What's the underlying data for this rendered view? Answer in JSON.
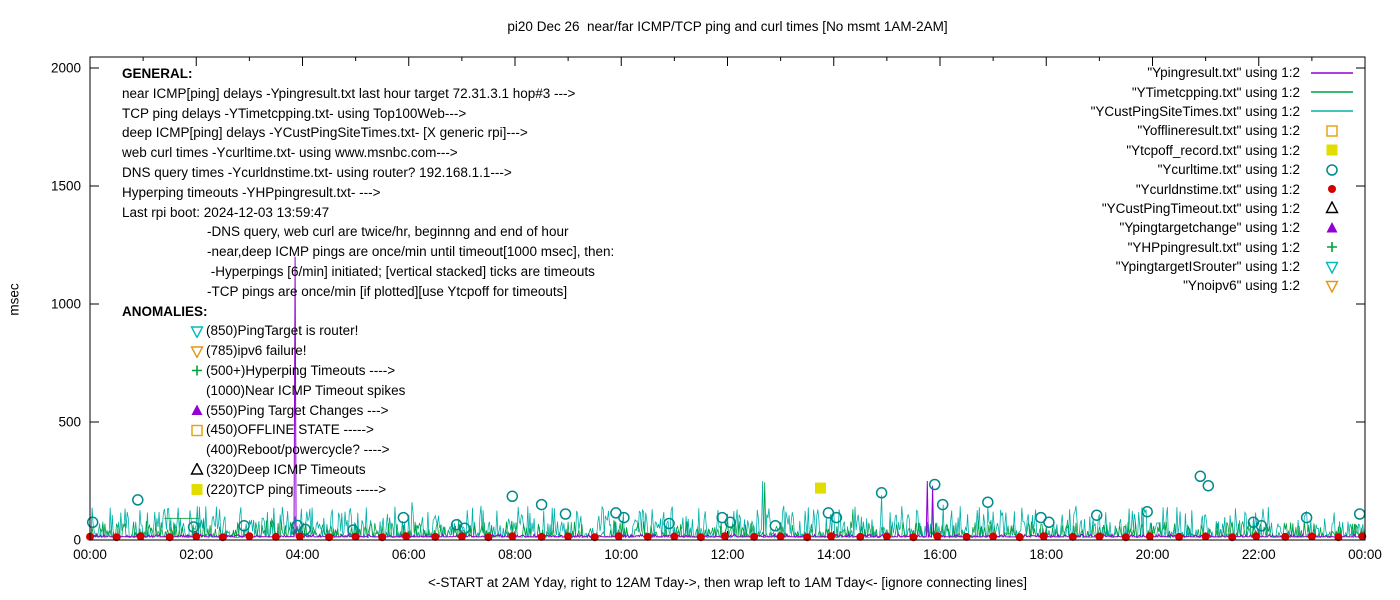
{
  "general": {
    "heading": "GENERAL:",
    "lines": [
      "near ICMP[ping] delays -Ypingresult.txt last hour target 72.31.3.1 hop#3 --->",
      "TCP ping delays -YTimetcpping.txt- using Top100Web--->",
      "deep ICMP[ping] delays -YCustPingSiteTimes.txt- [X generic rpi]--->",
      "web curl times -Ycurltime.txt- using www.msnbc.com--->",
      "DNS query times -Ycurldnstime.txt- using router? 192.168.1.1--->",
      "Hyperping timeouts -YHPpingresult.txt- --->",
      "Last rpi boot: 2024-12-03 13:59:47"
    ],
    "sub_lines": [
      "-DNS query, web curl are twice/hr, beginnng and end of hour",
      "-near,deep ICMP pings are once/min until timeout[1000 msec], then:",
      " -Hyperpings [6/min] initiated; [vertical stacked] ticks are timeouts",
      "-TCP pings are once/min [if plotted][use Ytcpoff for timeouts]"
    ]
  },
  "anomalies": {
    "heading": "ANOMALIES:",
    "items": [
      {
        "marker": "triangle-down-open",
        "color": "#00bcbc",
        "text": "(850)PingTarget is router!"
      },
      {
        "marker": "triangle-down-open",
        "color": "#e89611",
        "text": "(785)ipv6 failure!"
      },
      {
        "marker": "plus",
        "color": "#00a040",
        "text": "(500+)Hyperping Timeouts ---->"
      },
      {
        "marker": null,
        "color": "",
        "text": "(1000)Near ICMP Timeout spikes"
      },
      {
        "marker": "triangle-up-filled",
        "color": "#9400d3",
        "text": "(550)Ping Target Changes --->"
      },
      {
        "marker": "square-open",
        "color": "#e8a000",
        "text": "(450)OFFLINE STATE ----->"
      },
      {
        "marker": null,
        "color": "",
        "text": "(400)Reboot/powercycle? ---->"
      },
      {
        "marker": "triangle-up-open",
        "color": "#000000",
        "text": "(320)Deep ICMP Timeouts"
      },
      {
        "marker": "square-filled",
        "color": "#e3dc00",
        "text": "(220)TCP ping Timeouts ----->"
      }
    ]
  },
  "legend": [
    {
      "label": "\"Ypingresult.txt\" using 1:2",
      "sample": "line",
      "color": "#9400d3"
    },
    {
      "label": "\"YTimetcpping.txt\" using 1:2",
      "sample": "line",
      "color": "#00a040"
    },
    {
      "label": "\"YCustPingSiteTimes.txt\" using 1:2",
      "sample": "line",
      "color": "#00b0a8"
    },
    {
      "label": "\"Yofflineresult.txt\" using 1:2",
      "sample": "square-open",
      "color": "#e8a000"
    },
    {
      "label": "\"Ytcpoff_record.txt\" using 1:2",
      "sample": "square-filled",
      "color": "#e3dc00"
    },
    {
      "label": "\"Ycurltime.txt\" using 1:2",
      "sample": "circle-open",
      "color": "#008b8b"
    },
    {
      "label": "\"Ycurldnstime.txt\" using 1:2",
      "sample": "circle-filled",
      "color": "#d40000"
    },
    {
      "label": "\"YCustPingTimeout.txt\" using 1:2",
      "sample": "triangle-up-open",
      "color": "#000000"
    },
    {
      "label": "\"Ypingtargetchange\" using 1:2",
      "sample": "triangle-up-filled",
      "color": "#9400d3"
    },
    {
      "label": "\"YHPpingresult.txt\" using 1:2",
      "sample": "plus",
      "color": "#00a040"
    },
    {
      "label": "\"YpingtargetISrouter\" using 1:2",
      "sample": "triangle-down-open",
      "color": "#00bcbc"
    },
    {
      "label": "\"Ynoipv6\" using 1:2",
      "sample": "triangle-down-open",
      "color": "#e89611"
    }
  ],
  "chart_data": {
    "type": "line",
    "title": "pi20 Dec 26  near/far ICMP/TCP ping and curl times [No msmt 1AM-2AM]",
    "xlabel": "<-START at 2AM Yday, right to 12AM Tday->, then wrap left to 1AM Tday<- [ignore connecting lines]",
    "ylabel": "msec",
    "x_unit": "time of day (hours)",
    "y_unit": "msec",
    "xlim": [
      0,
      24
    ],
    "ylim": [
      0,
      2000
    ],
    "grid": false,
    "legend_position": "top-right-inside",
    "xtick_labels": [
      "00:00",
      "02:00",
      "04:00",
      "06:00",
      "08:00",
      "10:00",
      "12:00",
      "14:00",
      "16:00",
      "18:00",
      "20:00",
      "22:00",
      "00:00"
    ],
    "ytick_values": [
      0,
      500,
      1000,
      1500,
      2000
    ],
    "series": [
      {
        "name": "Ypingresult.txt",
        "type": "line",
        "color": "#9400d3",
        "description": "near ICMP ping delay, ~13 msec baseline with timeout spikes",
        "baseline_msec": 13,
        "noise": {
          "seed": 41,
          "pow": 4,
          "amp": 12
        },
        "spikes": [
          [
            3.85,
            1200
          ],
          [
            15.75,
            250
          ],
          [
            15.85,
            230
          ]
        ]
      },
      {
        "name": "YTimetcpping.txt",
        "type": "line",
        "color": "#00a040",
        "description": "TCP ping delay, noisy 10-80 msec band",
        "baseline_msec": 12,
        "noise": {
          "seed": 97,
          "pow": 3,
          "amp": 70
        },
        "spikes": [
          [
            12.7,
            245
          ],
          [
            14.35,
            130
          ]
        ],
        "gap_bridge": [
          [
            1.4,
            92
          ],
          [
            2.05,
            92
          ]
        ]
      },
      {
        "name": "YCustPingSiteTimes.txt",
        "type": "line",
        "color": "#00b0a8",
        "description": "deep ICMP ping delay, dense noisy 10-120 msec band",
        "baseline_msec": 10,
        "noise": {
          "seed": 7,
          "pow": 2.6,
          "amp": 135
        },
        "spikes": [
          [
            6.05,
            160
          ],
          [
            8.05,
            140
          ],
          [
            12.65,
            250
          ],
          [
            14.9,
            190
          ],
          [
            16.05,
            150
          ]
        ]
      },
      {
        "name": "Yofflineresult.txt",
        "type": "points",
        "marker": "square-open",
        "color": "#e8a000",
        "points": []
      },
      {
        "name": "Ytcpoff_record.txt",
        "type": "points",
        "marker": "square-filled",
        "color": "#e3dc00",
        "points": [
          [
            13.75,
            220
          ]
        ]
      },
      {
        "name": "Ycurltime.txt",
        "type": "points",
        "marker": "circle-open",
        "color": "#008b8b",
        "points": [
          [
            0.05,
            75
          ],
          [
            0.9,
            170
          ],
          [
            1.95,
            55
          ],
          [
            2.9,
            60
          ],
          [
            3.9,
            62
          ],
          [
            4.05,
            45
          ],
          [
            4.95,
            42
          ],
          [
            5.9,
            95
          ],
          [
            6.9,
            65
          ],
          [
            7.05,
            50
          ],
          [
            7.95,
            185
          ],
          [
            8.5,
            150
          ],
          [
            8.95,
            110
          ],
          [
            9.9,
            115
          ],
          [
            10.05,
            95
          ],
          [
            10.9,
            70
          ],
          [
            11.9,
            95
          ],
          [
            12.05,
            75
          ],
          [
            12.9,
            60
          ],
          [
            13.9,
            115
          ],
          [
            14.05,
            95
          ],
          [
            14.9,
            200
          ],
          [
            15.9,
            235
          ],
          [
            16.05,
            150
          ],
          [
            16.9,
            160
          ],
          [
            17.9,
            95
          ],
          [
            18.05,
            75
          ],
          [
            18.95,
            105
          ],
          [
            19.9,
            120
          ],
          [
            20.9,
            270
          ],
          [
            21.05,
            230
          ],
          [
            21.9,
            75
          ],
          [
            22.05,
            60
          ],
          [
            22.9,
            95
          ],
          [
            23.9,
            110
          ]
        ]
      },
      {
        "name": "Ycurldnstime.txt",
        "type": "points",
        "marker": "circle-filled",
        "color": "#d40000",
        "points": [
          [
            0,
            14
          ],
          [
            0.5,
            12
          ],
          [
            0.95,
            16
          ],
          [
            1.5,
            12
          ],
          [
            2,
            15
          ],
          [
            2.5,
            12
          ],
          [
            3,
            16
          ],
          [
            3.5,
            13
          ],
          [
            3.95,
            15
          ],
          [
            4.5,
            12
          ],
          [
            5,
            14
          ],
          [
            5.5,
            12
          ],
          [
            5.95,
            16
          ],
          [
            6.5,
            13
          ],
          [
            7,
            15
          ],
          [
            7.5,
            12
          ],
          [
            7.95,
            16
          ],
          [
            8.5,
            13
          ],
          [
            9,
            15
          ],
          [
            9.5,
            12
          ],
          [
            9.95,
            16
          ],
          [
            10.5,
            13
          ],
          [
            11,
            15
          ],
          [
            11.5,
            12
          ],
          [
            11.95,
            16
          ],
          [
            12.5,
            13
          ],
          [
            13,
            15
          ],
          [
            13.5,
            12
          ],
          [
            13.95,
            16
          ],
          [
            14.5,
            13
          ],
          [
            15,
            15
          ],
          [
            15.5,
            12
          ],
          [
            15.95,
            16
          ],
          [
            16.5,
            13
          ],
          [
            17,
            15
          ],
          [
            17.5,
            12
          ],
          [
            17.95,
            16
          ],
          [
            18.5,
            13
          ],
          [
            19,
            15
          ],
          [
            19.5,
            12
          ],
          [
            19.95,
            16
          ],
          [
            20.5,
            13
          ],
          [
            21,
            15
          ],
          [
            21.5,
            12
          ],
          [
            21.95,
            16
          ],
          [
            22.5,
            13
          ],
          [
            23,
            15
          ],
          [
            23.5,
            12
          ],
          [
            23.95,
            16
          ]
        ]
      },
      {
        "name": "YCustPingTimeout.txt",
        "type": "points",
        "marker": "triangle-up-open",
        "color": "#000000",
        "points": []
      },
      {
        "name": "Ypingtargetchange",
        "type": "points",
        "marker": "triangle-up-filled",
        "color": "#9400d3",
        "points": []
      },
      {
        "name": "YHPpingresult.txt",
        "type": "points",
        "marker": "plus",
        "color": "#00a040",
        "points": []
      },
      {
        "name": "YpingtargetISrouter",
        "type": "points",
        "marker": "triangle-down-open",
        "color": "#00bcbc",
        "points": []
      },
      {
        "name": "Ynoipv6",
        "type": "points",
        "marker": "triangle-down-open",
        "color": "#e89611",
        "points": []
      }
    ]
  }
}
